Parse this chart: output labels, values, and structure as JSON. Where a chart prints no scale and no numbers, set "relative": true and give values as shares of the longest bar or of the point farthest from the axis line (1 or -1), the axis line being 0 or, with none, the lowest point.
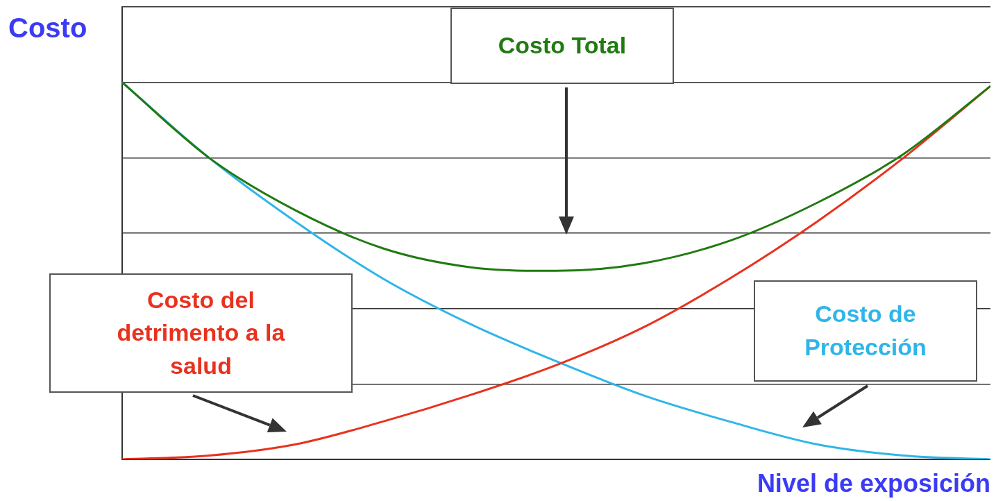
{
  "chart_data": {
    "type": "line",
    "relative": true,
    "xlabel": "Nivel de exposición",
    "ylabel": "Costo",
    "categories": [
      null,
      null,
      null,
      null,
      null,
      null,
      null,
      null,
      null,
      null,
      null
    ],
    "series": [
      {
        "name": "Costo Total",
        "color": "#217a12",
        "values": [
          1.0,
          0.8,
          0.66,
          0.56,
          0.51,
          0.5,
          0.52,
          0.58,
          0.68,
          0.81,
          0.99
        ]
      },
      {
        "name": "Costo del detrimento a la salud",
        "color": "#e8321e",
        "values": [
          0,
          0.01,
          0.04,
          0.1,
          0.17,
          0.25,
          0.35,
          0.48,
          0.63,
          0.8,
          0.99
        ]
      },
      {
        "name": "Costo de Protección",
        "color": "#2fb5e8",
        "values": [
          1.0,
          0.8,
          0.63,
          0.48,
          0.36,
          0.26,
          0.17,
          0.1,
          0.04,
          0.01,
          0
        ]
      }
    ],
    "grid": "y",
    "legend": false,
    "marker": "none",
    "line_style": "solid"
  }
}
